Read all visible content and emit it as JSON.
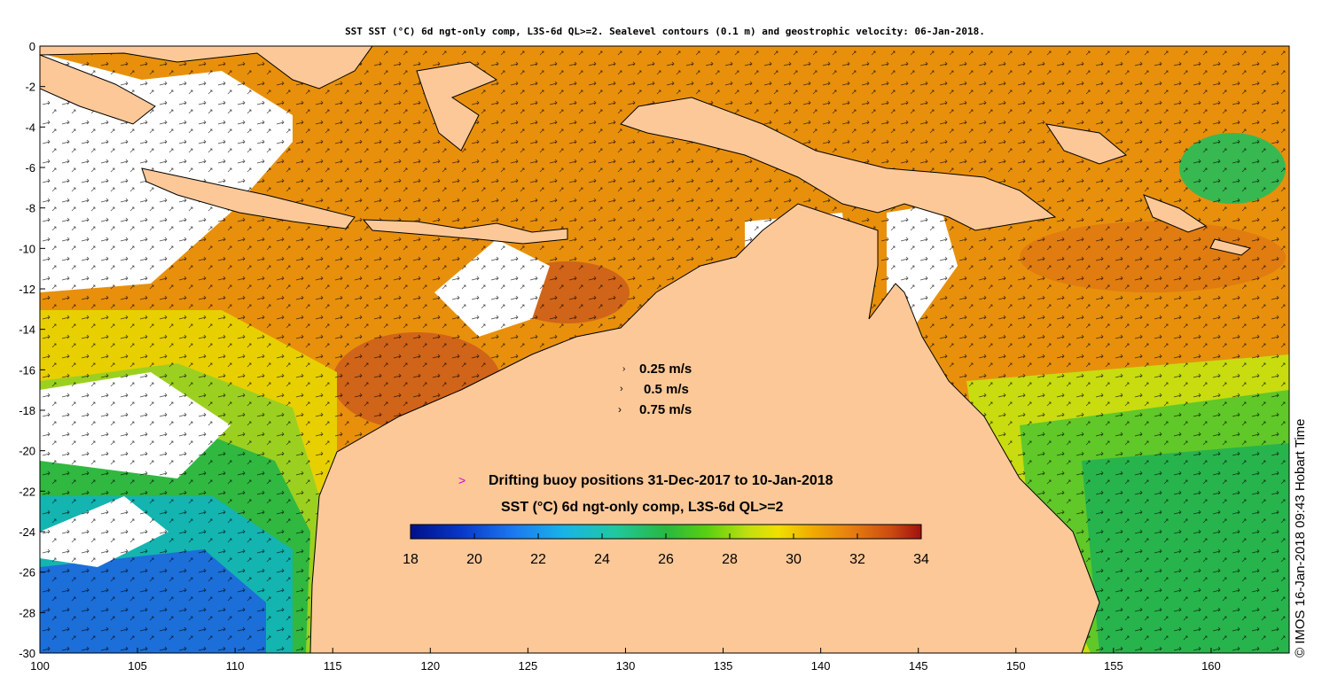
{
  "title": "SST SST (°C) 6d ngt-only comp, L3S-6d QL>=2. Sealevel contours (0.1 m) and geostrophic velocity: 06-Jan-2018.",
  "credit": "© IMOS 16-Jan-2018 09:43 Hobart Time",
  "velocity_legend": [
    "0.25 m/s",
    "0.5 m/s",
    "0.75 m/s"
  ],
  "buoy_legend": {
    "symbol": ">",
    "label": "Drifting buoy positions 31-Dec-2017 to 10-Jan-2018",
    "color": "#d400d4"
  },
  "colorbar": {
    "label": "SST (°C) 6d ngt-only comp, L3S-6d QL>=2",
    "ticks": [
      "18",
      "20",
      "22",
      "24",
      "26",
      "28",
      "30",
      "32",
      "34"
    ]
  },
  "axes": {
    "x_ticks": [
      "100",
      "105",
      "110",
      "115",
      "120",
      "125",
      "130",
      "135",
      "140",
      "145",
      "150",
      "155",
      "160"
    ],
    "y_ticks": [
      "0",
      "-2",
      "-4",
      "-6",
      "-8",
      "-10",
      "-12",
      "-14",
      "-16",
      "-18",
      "-20",
      "-22",
      "-24",
      "-26",
      "-28",
      "-30"
    ],
    "lon_range": [
      100,
      164
    ],
    "lat_range": [
      -30,
      0
    ]
  },
  "colors": {
    "land": "#fcc898",
    "no_data": "#ffffff",
    "sst_warm": "#e8860a",
    "sst_hot": "#c85414",
    "sst_mid": "#f0c800",
    "sst_cool": "#40c030",
    "sst_cold": "#1478d8"
  }
}
